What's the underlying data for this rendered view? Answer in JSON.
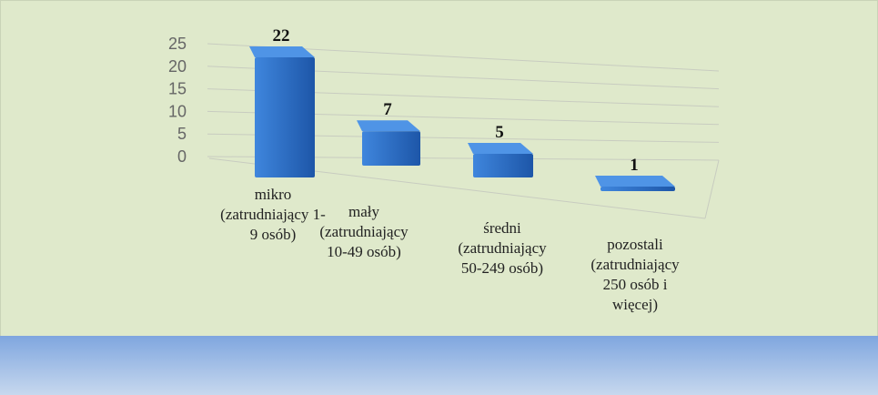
{
  "chart_data": {
    "type": "bar3d",
    "categories": [
      "mikro (zatrudniający 1-9 osób)",
      "mały (zatrudniający 10-49 osób)",
      "średni (zatrudniający 50-249 osób)",
      "pozostali (zatrudniający 250 osób i więcej)"
    ],
    "values": [
      22,
      7,
      5,
      1
    ],
    "color": "#2e6fc7",
    "ylim": [
      0,
      25
    ],
    "yticks": [
      0,
      5,
      10,
      15,
      20,
      25
    ],
    "grid": true
  }
}
